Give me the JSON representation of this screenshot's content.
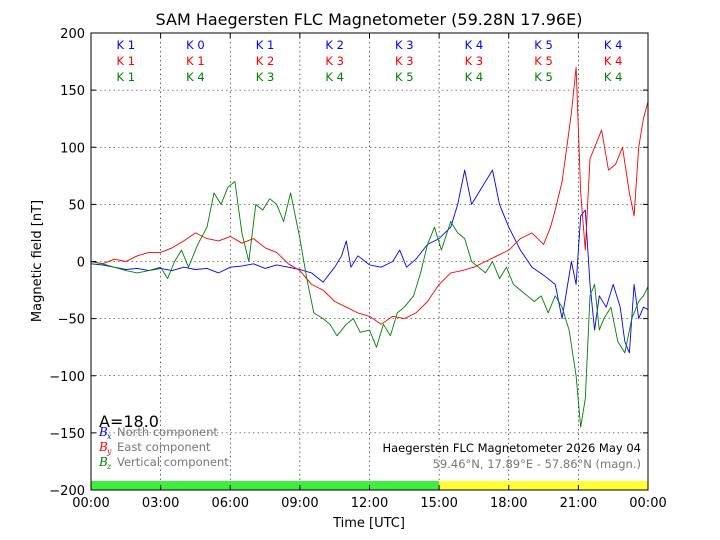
{
  "chart_data": {
    "type": "line",
    "title": "SAM Haegersten FLC Magnetometer (59.28N 17.96E)",
    "xlabel": "Time [UTC]",
    "ylabel": "Magnetic field [nT]",
    "xlim": [
      0,
      24
    ],
    "ylim": [
      -200,
      200
    ],
    "x_tick_labels": [
      "00:00",
      "03:00",
      "06:00",
      "09:00",
      "12:00",
      "15:00",
      "18:00",
      "21:00",
      "00:00"
    ],
    "y_ticks": [
      -200,
      -150,
      -100,
      -50,
      0,
      50,
      100,
      150,
      200
    ],
    "y_tick_labels": [
      "−200",
      "−150",
      "−100",
      "−50",
      "0",
      "50",
      "100",
      "150",
      "200"
    ],
    "grid": true,
    "colors": {
      "bx": "#0000ff",
      "by": "#ff0000",
      "bz": "#008000"
    },
    "k_index_rows": [
      {
        "series": "bx",
        "values": [
          "K 1",
          "K 0",
          "K 1",
          "K 2",
          "K 3",
          "K 4",
          "K 5",
          "K 4"
        ]
      },
      {
        "series": "by",
        "values": [
          "K 1",
          "K 1",
          "K 2",
          "K 3",
          "K 3",
          "K 3",
          "K 5",
          "K 4"
        ]
      },
      {
        "series": "bz",
        "values": [
          "K 1",
          "K 4",
          "K 3",
          "K 4",
          "K 5",
          "K 4",
          "K 5",
          "K 4"
        ]
      }
    ],
    "a_index": "A=18.0",
    "legend": [
      {
        "series": "bx",
        "symbol": "B",
        "sub": "x",
        "label": "North component"
      },
      {
        "series": "by",
        "symbol": "B",
        "sub": "y",
        "label": "East component"
      },
      {
        "series": "bz",
        "symbol": "B",
        "sub": "z",
        "label": "Vertical component"
      }
    ],
    "info_line_1": "Haegersten FLC Magnetometer 2026 May 04",
    "info_line_2": "59.46°N, 17.89°E - 57.86°N (magn.)",
    "daylight_bar": [
      {
        "from": 0,
        "to": 15,
        "color": "#40ee40"
      },
      {
        "from": 15,
        "to": 24,
        "color": "#ffff33"
      }
    ],
    "series": [
      {
        "key": "bx",
        "points": [
          [
            0,
            -2
          ],
          [
            0.5,
            -3
          ],
          [
            1,
            -5
          ],
          [
            1.5,
            -7
          ],
          [
            2,
            -6
          ],
          [
            2.5,
            -8
          ],
          [
            3,
            -6
          ],
          [
            3.5,
            -8
          ],
          [
            4,
            -5
          ],
          [
            4.5,
            -7
          ],
          [
            5,
            -6
          ],
          [
            5.5,
            -10
          ],
          [
            6,
            -5
          ],
          [
            6.5,
            -4
          ],
          [
            7,
            -2
          ],
          [
            7.5,
            -6
          ],
          [
            8,
            -3
          ],
          [
            8.5,
            -5
          ],
          [
            9,
            -7
          ],
          [
            9.5,
            -10
          ],
          [
            10,
            -18
          ],
          [
            10.5,
            -5
          ],
          [
            10.8,
            5
          ],
          [
            11,
            18
          ],
          [
            11.2,
            -5
          ],
          [
            11.5,
            5
          ],
          [
            12,
            -3
          ],
          [
            12.5,
            -5
          ],
          [
            13,
            0
          ],
          [
            13.3,
            10
          ],
          [
            13.6,
            -5
          ],
          [
            14,
            2
          ],
          [
            14.5,
            15
          ],
          [
            15,
            20
          ],
          [
            15.5,
            30
          ],
          [
            15.8,
            50
          ],
          [
            16.1,
            80
          ],
          [
            16.4,
            50
          ],
          [
            16.7,
            60
          ],
          [
            17,
            70
          ],
          [
            17.3,
            80
          ],
          [
            17.6,
            50
          ],
          [
            18,
            30
          ],
          [
            18.5,
            10
          ],
          [
            19,
            -5
          ],
          [
            19.5,
            -12
          ],
          [
            20,
            -20
          ],
          [
            20.3,
            -50
          ],
          [
            20.7,
            0
          ],
          [
            20.9,
            -20
          ],
          [
            21.1,
            40
          ],
          [
            21.3,
            45
          ],
          [
            21.5,
            -20
          ],
          [
            21.7,
            -60
          ],
          [
            21.9,
            -30
          ],
          [
            22.2,
            -40
          ],
          [
            22.5,
            -20
          ],
          [
            22.8,
            -40
          ],
          [
            23,
            -70
          ],
          [
            23.2,
            -80
          ],
          [
            23.4,
            -20
          ],
          [
            23.6,
            -50
          ],
          [
            23.8,
            -40
          ],
          [
            24,
            -42
          ]
        ]
      },
      {
        "key": "by",
        "points": [
          [
            0,
            0
          ],
          [
            0.5,
            -2
          ],
          [
            1,
            2
          ],
          [
            1.5,
            0
          ],
          [
            2,
            5
          ],
          [
            2.5,
            8
          ],
          [
            3,
            8
          ],
          [
            3.5,
            12
          ],
          [
            4,
            18
          ],
          [
            4.5,
            25
          ],
          [
            5,
            20
          ],
          [
            5.5,
            18
          ],
          [
            6,
            22
          ],
          [
            6.5,
            16
          ],
          [
            7,
            20
          ],
          [
            7.5,
            12
          ],
          [
            8,
            8
          ],
          [
            8.5,
            -2
          ],
          [
            9,
            -8
          ],
          [
            9.5,
            -20
          ],
          [
            10,
            -25
          ],
          [
            10.5,
            -35
          ],
          [
            11,
            -40
          ],
          [
            11.5,
            -45
          ],
          [
            12,
            -48
          ],
          [
            12.5,
            -55
          ],
          [
            13,
            -48
          ],
          [
            13.5,
            -50
          ],
          [
            14,
            -45
          ],
          [
            14.5,
            -35
          ],
          [
            15,
            -20
          ],
          [
            15.5,
            -10
          ],
          [
            16,
            -8
          ],
          [
            16.5,
            -5
          ],
          [
            17,
            0
          ],
          [
            17.5,
            5
          ],
          [
            18,
            10
          ],
          [
            18.5,
            20
          ],
          [
            19,
            25
          ],
          [
            19.5,
            15
          ],
          [
            19.8,
            30
          ],
          [
            20,
            45
          ],
          [
            20.3,
            70
          ],
          [
            20.5,
            100
          ],
          [
            20.7,
            130
          ],
          [
            20.9,
            170
          ],
          [
            21.1,
            60
          ],
          [
            21.3,
            10
          ],
          [
            21.5,
            90
          ],
          [
            21.7,
            100
          ],
          [
            22,
            115
          ],
          [
            22.3,
            80
          ],
          [
            22.6,
            85
          ],
          [
            22.9,
            100
          ],
          [
            23.2,
            60
          ],
          [
            23.4,
            40
          ],
          [
            23.6,
            100
          ],
          [
            23.8,
            125
          ],
          [
            24,
            140
          ]
        ]
      },
      {
        "key": "bz",
        "points": [
          [
            0,
            0
          ],
          [
            0.5,
            -2
          ],
          [
            1,
            -5
          ],
          [
            1.5,
            -8
          ],
          [
            2,
            -10
          ],
          [
            2.5,
            -8
          ],
          [
            3,
            -5
          ],
          [
            3.3,
            -15
          ],
          [
            3.6,
            0
          ],
          [
            3.9,
            10
          ],
          [
            4.2,
            -5
          ],
          [
            4.6,
            15
          ],
          [
            5,
            30
          ],
          [
            5.3,
            60
          ],
          [
            5.6,
            50
          ],
          [
            5.9,
            65
          ],
          [
            6.2,
            70
          ],
          [
            6.5,
            25
          ],
          [
            6.8,
            0
          ],
          [
            7.1,
            50
          ],
          [
            7.4,
            45
          ],
          [
            7.7,
            55
          ],
          [
            8,
            50
          ],
          [
            8.3,
            35
          ],
          [
            8.6,
            60
          ],
          [
            9,
            20
          ],
          [
            9.3,
            -15
          ],
          [
            9.6,
            -45
          ],
          [
            10,
            -50
          ],
          [
            10.3,
            -55
          ],
          [
            10.6,
            -65
          ],
          [
            11,
            -55
          ],
          [
            11.3,
            -50
          ],
          [
            11.6,
            -62
          ],
          [
            12,
            -60
          ],
          [
            12.3,
            -75
          ],
          [
            12.6,
            -55
          ],
          [
            12.9,
            -65
          ],
          [
            13.2,
            -45
          ],
          [
            13.5,
            -40
          ],
          [
            13.9,
            -30
          ],
          [
            14.2,
            -10
          ],
          [
            14.5,
            15
          ],
          [
            14.8,
            30
          ],
          [
            15.1,
            10
          ],
          [
            15.5,
            35
          ],
          [
            15.8,
            25
          ],
          [
            16.1,
            20
          ],
          [
            16.4,
            0
          ],
          [
            16.7,
            -5
          ],
          [
            17,
            -10
          ],
          [
            17.3,
            0
          ],
          [
            17.6,
            -15
          ],
          [
            17.9,
            -5
          ],
          [
            18.2,
            -20
          ],
          [
            18.5,
            -25
          ],
          [
            18.8,
            -30
          ],
          [
            19.1,
            -35
          ],
          [
            19.4,
            -30
          ],
          [
            19.7,
            -45
          ],
          [
            20,
            -30
          ],
          [
            20.3,
            -40
          ],
          [
            20.6,
            -60
          ],
          [
            20.9,
            -100
          ],
          [
            21.1,
            -145
          ],
          [
            21.3,
            -120
          ],
          [
            21.5,
            -30
          ],
          [
            21.7,
            -20
          ],
          [
            21.9,
            -60
          ],
          [
            22.1,
            -50
          ],
          [
            22.4,
            -40
          ],
          [
            22.7,
            -70
          ],
          [
            23,
            -80
          ],
          [
            23.3,
            -50
          ],
          [
            23.6,
            -35
          ],
          [
            23.8,
            -30
          ],
          [
            24,
            -22
          ]
        ]
      }
    ]
  }
}
